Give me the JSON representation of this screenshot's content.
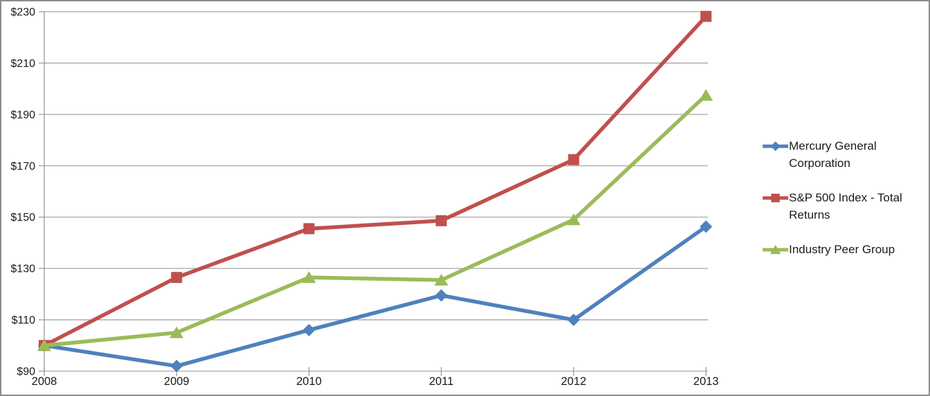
{
  "chart_data": {
    "type": "line",
    "title": "",
    "xlabel": "",
    "ylabel": "",
    "categories": [
      "2008",
      "2009",
      "2010",
      "2011",
      "2012",
      "2013"
    ],
    "series": [
      {
        "name": "Mercury General Corporation",
        "marker": "diamond",
        "color": "#4F81BD",
        "values": [
          100,
          92,
          106,
          119.5,
          110,
          146.3
        ]
      },
      {
        "name": "S&P 500 Index - Total Returns",
        "marker": "square",
        "color": "#C0504D",
        "values": [
          100,
          126.5,
          145.5,
          148.6,
          172.4,
          228.2
        ]
      },
      {
        "name": "Industry Peer Group",
        "marker": "triangle",
        "color": "#9BBB59",
        "values": [
          100,
          105,
          126.5,
          125.5,
          149,
          197.5
        ]
      }
    ],
    "ylim": [
      90,
      230
    ],
    "ytick_step": 20,
    "ytick_labels": [
      "$90",
      "$110",
      "$130",
      "$150",
      "$170",
      "$190",
      "$210",
      "$230"
    ],
    "grid": true,
    "legend_position": "right",
    "axis_color": "#9c9c9c",
    "gridline_color": "#a6a6a6",
    "text_color": "#1a1a1a",
    "background_color": "#ffffff"
  }
}
